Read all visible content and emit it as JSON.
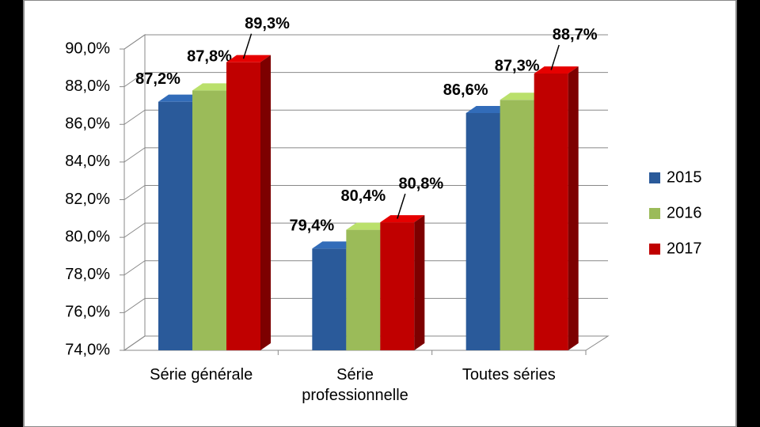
{
  "chart_data": {
    "type": "bar3d",
    "categories": [
      "Série générale",
      "Série professionnelle",
      "Toutes séries"
    ],
    "series": [
      {
        "name": "2015",
        "color": "#2a5a9a",
        "values": [
          87.2,
          79.4,
          86.6
        ],
        "value_labels": [
          "87,2%",
          "79,4%",
          "86,6%"
        ]
      },
      {
        "name": "2016",
        "color": "#9bbb59",
        "values": [
          87.8,
          80.4,
          87.3
        ],
        "value_labels": [
          "87,8%",
          "80,4%",
          "87,3%"
        ]
      },
      {
        "name": "2017",
        "color": "#c00000",
        "values": [
          89.3,
          80.8,
          88.7
        ],
        "value_labels": [
          "89,3%",
          "80,8%",
          "88,7%"
        ]
      }
    ],
    "ylim": [
      74,
      90
    ],
    "yticks": [
      {
        "value": 74,
        "label": "74,0%"
      },
      {
        "value": 76,
        "label": "76,0%"
      },
      {
        "value": 78,
        "label": "78,0%"
      },
      {
        "value": 80,
        "label": "80,0%"
      },
      {
        "value": 82,
        "label": "82,0%"
      },
      {
        "value": 84,
        "label": "84,0%"
      },
      {
        "value": 86,
        "label": "86,0%"
      },
      {
        "value": 88,
        "label": "88,0%"
      },
      {
        "value": 90,
        "label": "90,0%"
      }
    ],
    "grid": true,
    "legend": "right"
  }
}
